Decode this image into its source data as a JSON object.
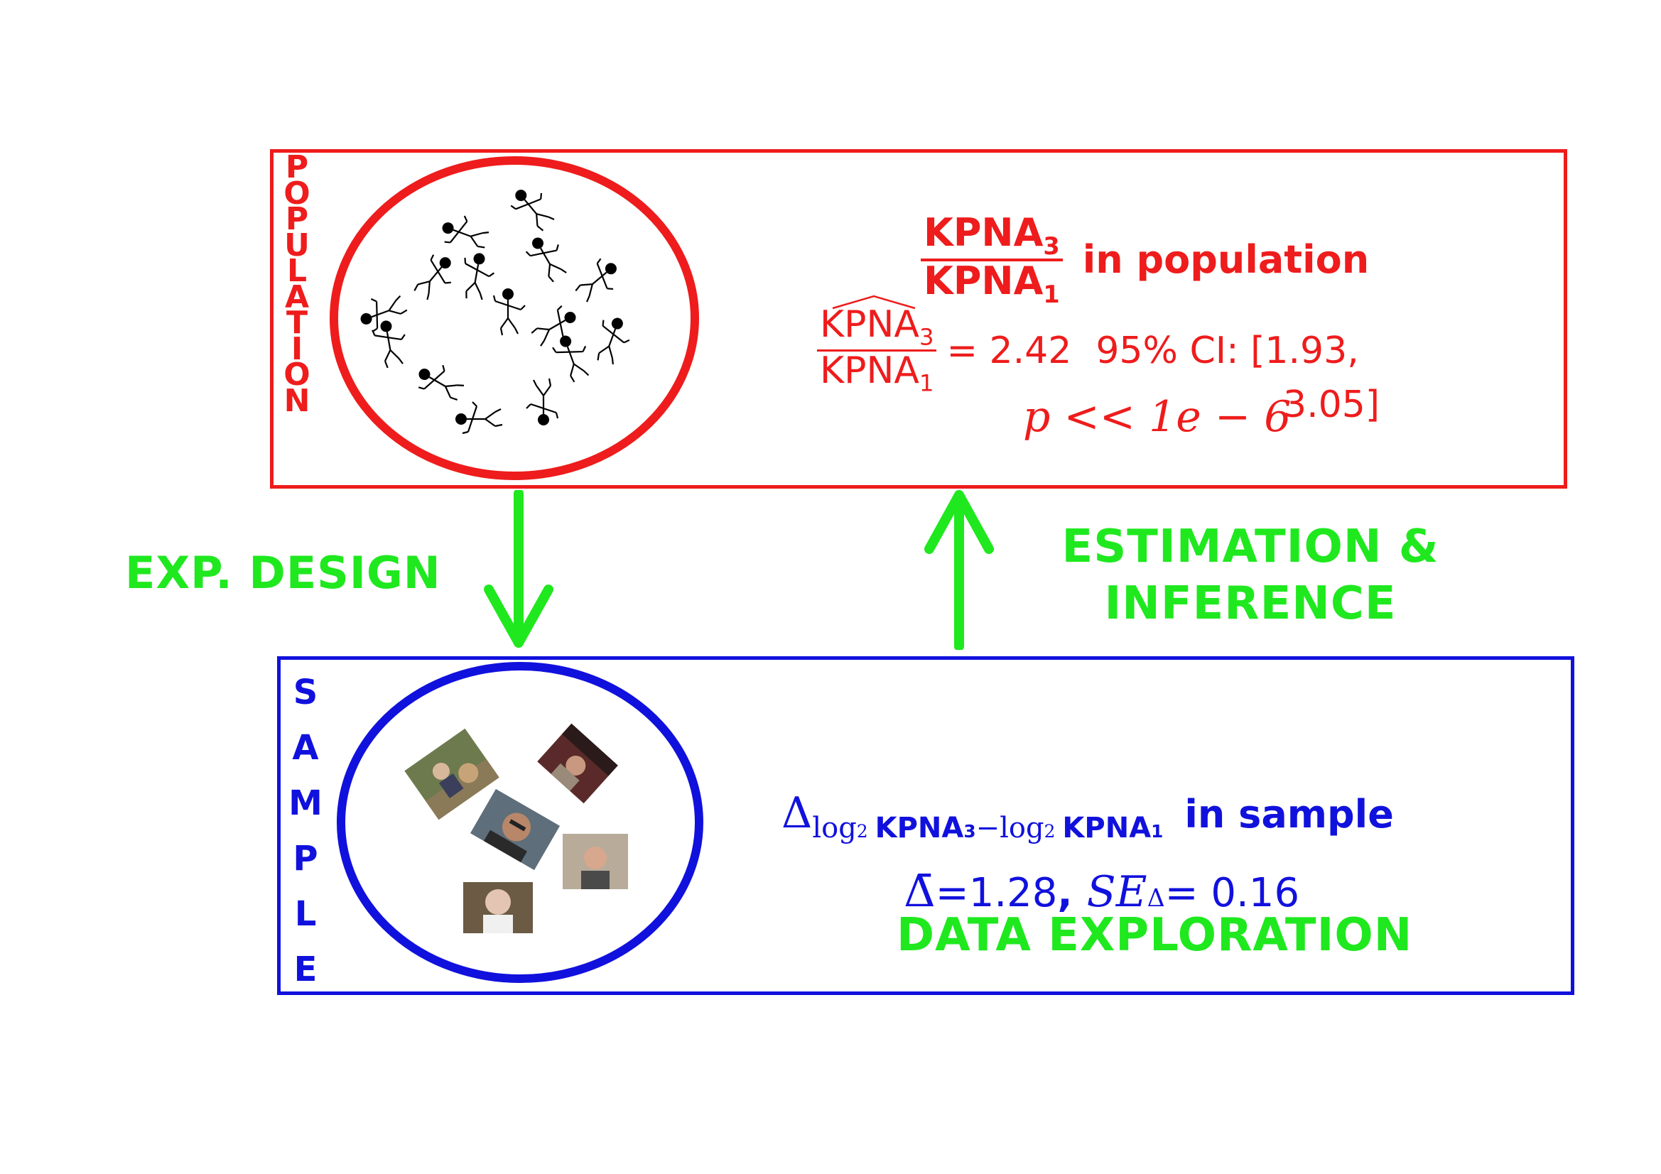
{
  "colors": {
    "population": "#ee1c1c",
    "sample": "#1111dd",
    "flow": "#1fe81f"
  },
  "population": {
    "side_label": "POPULATION",
    "title_numerator": "KPNA",
    "title_numerator_sub": "3",
    "title_denominator": "KPNA",
    "title_denominator_sub": "1",
    "title_label": "in population",
    "estimate_numerator": "KPNA",
    "estimate_numerator_sub": "3",
    "estimate_denominator": "KPNA",
    "estimate_denominator_sub": "1",
    "estimate_value": "= 2.42",
    "ci_label": "95% CI: [1.93,",
    "ci_upper": "3.05]",
    "p_value": "p << 1e − 6",
    "population_icon": "stick-figure-icon"
  },
  "sample": {
    "side_label": "SAMPLE",
    "delta_symbol": "Δ",
    "delta_sub_log1": "log",
    "delta_sub_log1_base": "2",
    "delta_sub_gene1": "KPNA",
    "delta_sub_gene1_sub": "3",
    "delta_sub_minus": "−",
    "delta_sub_log2": "log",
    "delta_sub_log2_base": "2",
    "delta_sub_gene2": "KPNA",
    "delta_sub_gene2_sub": "1",
    "title_label": "in sample",
    "mean_symbol": "Δ̄",
    "mean_value": " =1.28",
    "separator": ",",
    "se_label": "SE",
    "se_sub": "Δ",
    "se_value": " = 0.16",
    "photo_icon": "person-photo-icon"
  },
  "flow": {
    "design_label": "EXP. DESIGN",
    "inference_line1": "ESTIMATION &",
    "inference_line2": "INFERENCE",
    "exploration_label": "DATA EXPLORATION"
  }
}
